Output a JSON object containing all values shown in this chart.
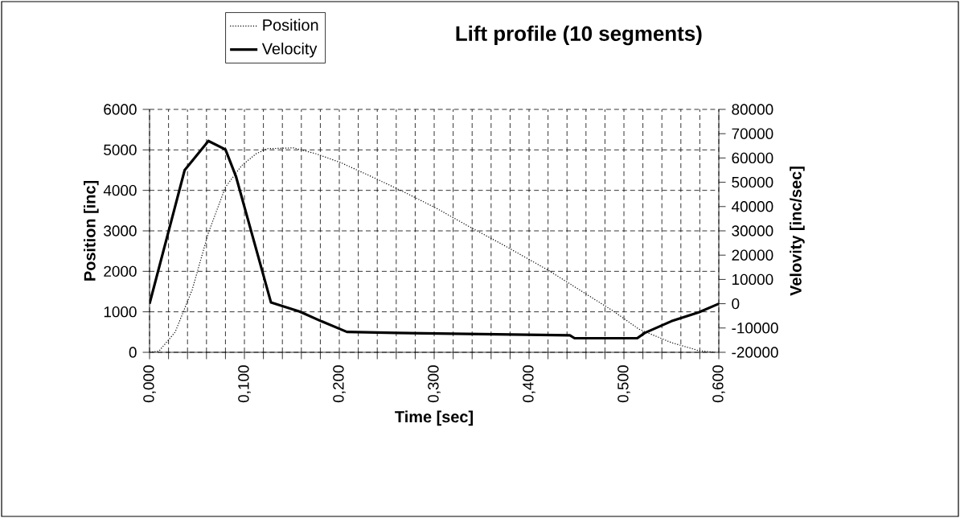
{
  "chart_data": {
    "type": "line",
    "title": "Lift profile (10 segments)",
    "xlabel": "Time [sec]",
    "ylabel": "Position [inc]",
    "y2label": "Velovity [inc/sec]",
    "series": [
      {
        "name": "Position",
        "color": "#000000",
        "line_style": "dotted",
        "x": [
          0,
          0.01,
          0.027,
          0.045,
          0.062,
          0.08,
          0.097,
          0.112,
          0.124,
          0.152,
          0.176,
          0.202,
          0.234,
          0.269,
          0.303,
          0.338,
          0.373,
          0.42,
          0.454,
          0.488,
          0.516,
          0.55,
          0.579,
          0.596
        ],
        "values": [
          0,
          30,
          500,
          1550,
          2950,
          4080,
          4610,
          4900,
          5030,
          5050,
          4900,
          4680,
          4340,
          3950,
          3550,
          3090,
          2650,
          2030,
          1530,
          1030,
          570,
          240,
          40,
          0
        ]
      },
      {
        "name": "Velocity",
        "color": "#000000",
        "line_style": "solid",
        "axis": "y2",
        "x": [
          0,
          0.037,
          0.062,
          0.08,
          0.091,
          0.128,
          0.158,
          0.181,
          0.208,
          0.26,
          0.443,
          0.448,
          0.514,
          0.522,
          0.55,
          0.579,
          0.6
        ],
        "values": [
          0,
          55000,
          67000,
          63500,
          52500,
          500,
          -3200,
          -7200,
          -11600,
          -12000,
          -13000,
          -14200,
          -14200,
          -12000,
          -7200,
          -3500,
          0
        ]
      }
    ],
    "xlim": [
      0,
      0.6
    ],
    "xticks": [
      {
        "value": 0,
        "label": "0,000"
      },
      {
        "value": 0.02,
        "label": null
      },
      {
        "value": 0.04,
        "label": null
      },
      {
        "value": 0.06,
        "label": null
      },
      {
        "value": 0.08,
        "label": null
      },
      {
        "value": 0.1,
        "label": "0,100"
      },
      {
        "value": 0.12,
        "label": null
      },
      {
        "value": 0.14,
        "label": null
      },
      {
        "value": 0.16,
        "label": null
      },
      {
        "value": 0.18,
        "label": null
      },
      {
        "value": 0.2,
        "label": "0,200"
      },
      {
        "value": 0.22,
        "label": null
      },
      {
        "value": 0.24,
        "label": null
      },
      {
        "value": 0.26,
        "label": null
      },
      {
        "value": 0.28,
        "label": null
      },
      {
        "value": 0.3,
        "label": "0,300"
      },
      {
        "value": 0.32,
        "label": null
      },
      {
        "value": 0.34,
        "label": null
      },
      {
        "value": 0.36,
        "label": null
      },
      {
        "value": 0.38,
        "label": null
      },
      {
        "value": 0.4,
        "label": "0,400"
      },
      {
        "value": 0.42,
        "label": null
      },
      {
        "value": 0.44,
        "label": null
      },
      {
        "value": 0.46,
        "label": null
      },
      {
        "value": 0.48,
        "label": null
      },
      {
        "value": 0.5,
        "label": "0,500"
      },
      {
        "value": 0.52,
        "label": null
      },
      {
        "value": 0.54,
        "label": null
      },
      {
        "value": 0.56,
        "label": null
      },
      {
        "value": 0.58,
        "label": null
      },
      {
        "value": 0.6,
        "label": "0,600"
      }
    ],
    "ylim": [
      0,
      6000
    ],
    "yticks": [
      0,
      1000,
      2000,
      3000,
      4000,
      5000,
      6000
    ],
    "y2lim": [
      -20000,
      80000
    ],
    "y2ticks": [
      -20000,
      -10000,
      0,
      10000,
      20000,
      30000,
      40000,
      50000,
      60000,
      70000,
      80000
    ],
    "grid": true,
    "legend": "top left",
    "marker": "none"
  }
}
